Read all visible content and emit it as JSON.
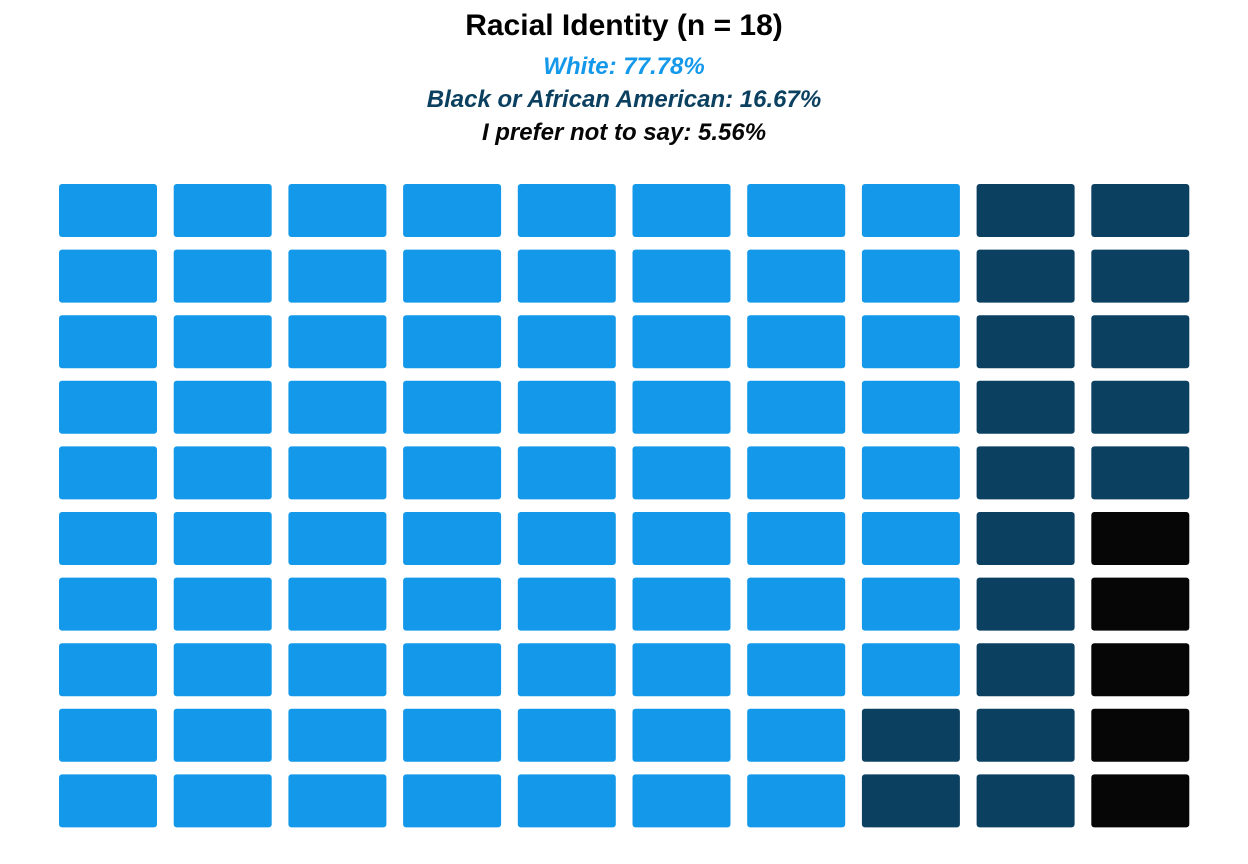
{
  "chart_data": {
    "type": "waffle",
    "title": "Racial Identity (n = 18)",
    "grid": {
      "columns": 10,
      "rows": 10,
      "total_cells": 100
    },
    "series": [
      {
        "name": "White",
        "label": "77.78%",
        "value": 77.78,
        "cells": 78,
        "color": "#1499ea"
      },
      {
        "name": "Black or African American",
        "label": "16.67%",
        "value": 16.67,
        "cells": 17,
        "color": "#0c4060"
      },
      {
        "name": "I prefer not to say",
        "label": "5.56%",
        "value": 5.56,
        "cells": 5,
        "color": "#060606"
      }
    ],
    "fill_order": "column-major, left to right, top to bottom",
    "legend_placement": "top-center",
    "grid_lines": false
  }
}
